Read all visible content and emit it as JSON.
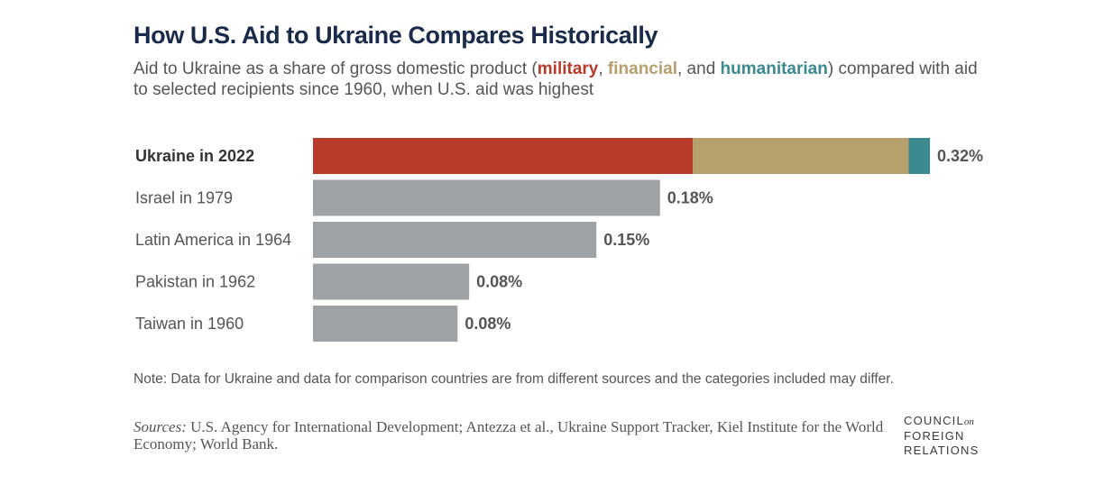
{
  "header": {
    "title": "How U.S. Aid to Ukraine Compares Historically",
    "subtitle_pre": "Aid to Ukraine as a share of gross domestic product (",
    "subtitle_military": "military",
    "subtitle_sep1": ", ",
    "subtitle_financial": "financial",
    "subtitle_sep2": ", and ",
    "subtitle_humanitarian": "humanitarian",
    "subtitle_post": ") compared with aid to selected recipients since 1960, when U.S. aid was highest"
  },
  "chart_data": {
    "type": "bar",
    "orientation": "horizontal",
    "stacked": true,
    "categories": [
      "Ukraine in 2022",
      "Israel in 1979",
      "Latin America in 1964",
      "Pakistan in 1962",
      "Taiwan in 1960"
    ],
    "series": [
      {
        "name": "military",
        "color": "#b83a2b",
        "values": [
          0.197,
          0,
          0,
          0,
          0
        ]
      },
      {
        "name": "financial",
        "color": "#b5a06e",
        "values": [
          0.112,
          0,
          0,
          0,
          0
        ]
      },
      {
        "name": "humanitarian",
        "color": "#3a8a90",
        "values": [
          0.011,
          0,
          0,
          0,
          0
        ]
      },
      {
        "name": "",
        "color": "#9ea2a5",
        "values": [
          0,
          0.18,
          0.147,
          0.081,
          0.075
        ]
      }
    ],
    "totals_labels": [
      "0.32%",
      "0.18%",
      "0.15%",
      "0.08%",
      "0.08%"
    ],
    "highlight_category": "Ukraine in 2022",
    "xlim": [
      0,
      0.32
    ],
    "unit": "% of GDP",
    "grid": false,
    "legend": "inline in subtitle"
  },
  "footer": {
    "note": "Note: Data for Ukraine and data for comparison countries are from different sources and the categories included may differ.",
    "sources_label": "Sources:",
    "sources_text": " U.S. Agency for International Development; Antezza et al., Ukraine Support Tracker, Kiel Institute for the World Economy; World Bank.",
    "logo_line1": "COUNCIL",
    "logo_on": "on",
    "logo_line2": "FOREIGN",
    "logo_line3": "RELATIONS"
  },
  "colors": {
    "military": "#b83a2b",
    "financial": "#b5a06e",
    "humanitarian": "#3a8a90",
    "comparison": "#9ea2a5",
    "title": "#1a2a4a",
    "label": "#555555"
  }
}
